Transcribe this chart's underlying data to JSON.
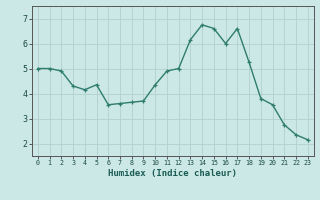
{
  "x": [
    0,
    1,
    2,
    3,
    4,
    5,
    6,
    7,
    8,
    9,
    10,
    11,
    12,
    13,
    14,
    15,
    16,
    17,
    18,
    19,
    20,
    21,
    22,
    23
  ],
  "y": [
    5.0,
    5.0,
    4.9,
    4.3,
    4.15,
    4.35,
    3.55,
    3.6,
    3.65,
    3.7,
    4.35,
    4.9,
    5.0,
    6.15,
    6.75,
    6.6,
    6.0,
    6.6,
    5.25,
    3.8,
    3.55,
    2.75,
    2.35,
    2.15
  ],
  "xlabel": "Humidex (Indice chaleur)",
  "ylim": [
    1.5,
    7.5
  ],
  "xlim": [
    -0.5,
    23.5
  ],
  "yticks": [
    2,
    3,
    4,
    5,
    6,
    7
  ],
  "xticks": [
    0,
    1,
    2,
    3,
    4,
    5,
    6,
    7,
    8,
    9,
    10,
    11,
    12,
    13,
    14,
    15,
    16,
    17,
    18,
    19,
    20,
    21,
    22,
    23
  ],
  "line_color": "#2e7d6e",
  "marker": "+",
  "bg_color": "#cce8e6",
  "grid_color": "#b0d0cd",
  "axis_color": "#555555",
  "label_color": "#1a5c54",
  "tick_label_color": "#1a4a44",
  "xlabel_fontsize": 6.5,
  "tick_fontsize_x": 4.8,
  "tick_fontsize_y": 6.0,
  "linewidth": 1.0,
  "markersize": 3.5
}
